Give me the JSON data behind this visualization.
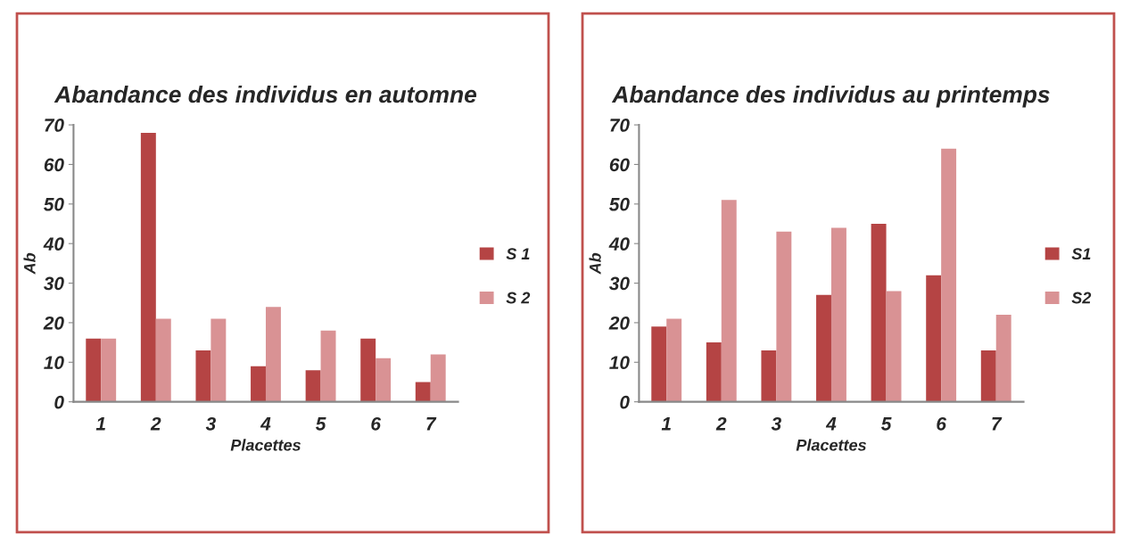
{
  "chart_data": [
    {
      "type": "bar",
      "title": "Abandance des individus en automne",
      "xlabel": "Placettes",
      "ylabel": "Ab",
      "categories": [
        "1",
        "2",
        "3",
        "4",
        "5",
        "6",
        "7"
      ],
      "series": [
        {
          "name": "S 1",
          "color": "#b54444",
          "values": [
            16,
            68,
            13,
            9,
            8,
            16,
            5
          ]
        },
        {
          "name": "S 2",
          "color": "#d99294",
          "values": [
            16,
            21,
            21,
            24,
            18,
            11,
            12
          ]
        }
      ],
      "ylim": [
        0,
        70
      ],
      "yticks": [
        0,
        10,
        20,
        30,
        40,
        50,
        60,
        70
      ],
      "grid": false,
      "legend": "right"
    },
    {
      "type": "bar",
      "title": "Abandance des individus au printemps",
      "xlabel": "Placettes",
      "ylabel": "Ab",
      "categories": [
        "1",
        "2",
        "3",
        "4",
        "5",
        "6",
        "7"
      ],
      "series": [
        {
          "name": "S1",
          "color": "#b54444",
          "values": [
            19,
            15,
            13,
            27,
            45,
            32,
            13
          ]
        },
        {
          "name": "S2",
          "color": "#d99294",
          "values": [
            21,
            51,
            43,
            44,
            28,
            64,
            22
          ]
        }
      ],
      "ylim": [
        0,
        70
      ],
      "yticks": [
        0,
        10,
        20,
        30,
        40,
        50,
        60,
        70
      ],
      "grid": false,
      "legend": "right"
    }
  ]
}
